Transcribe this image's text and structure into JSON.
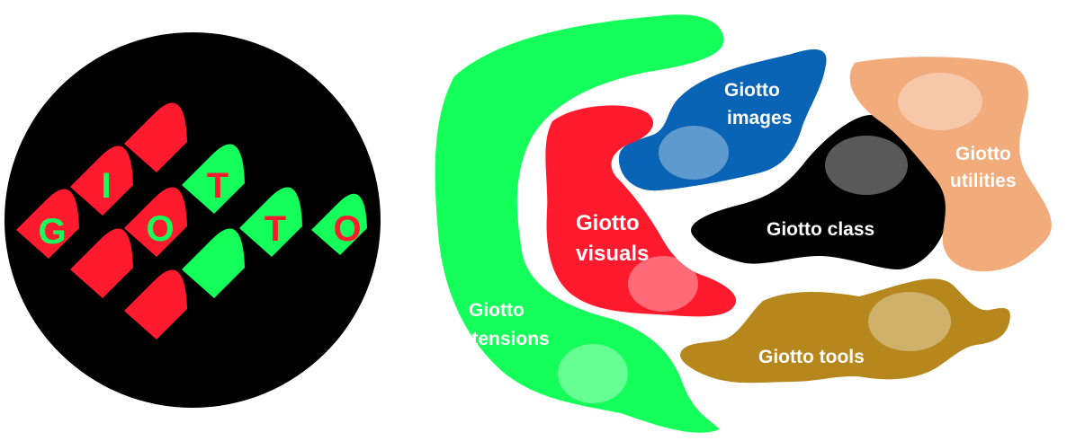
{
  "colors": {
    "red": "#ff1b2d",
    "green": "#14ff5a",
    "black": "#000000",
    "blue": "#0a64b5",
    "peach": "#f2ab7b",
    "gold": "#b5871d",
    "white": "#ffffff"
  },
  "logo": {
    "letters": [
      "G",
      "I",
      "O",
      "T",
      "T",
      "O"
    ]
  },
  "modules": {
    "extensions": [
      "Giotto",
      "extensions"
    ],
    "images": [
      "Giotto",
      "images"
    ],
    "visuals": [
      "Giotto",
      "visuals"
    ],
    "class": "Giotto class",
    "utilities": [
      "Giotto",
      "utilities"
    ],
    "tools": "Giotto tools"
  }
}
